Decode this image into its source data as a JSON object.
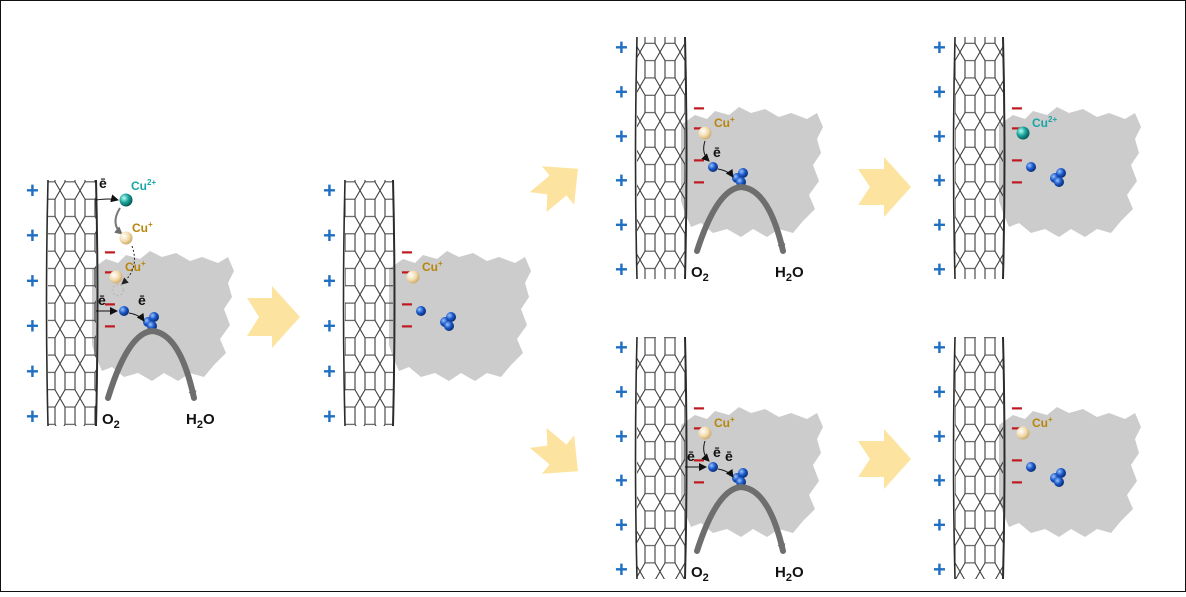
{
  "colors": {
    "tube": "#2b2b2b",
    "protein": "#cccccc",
    "plus": "#1f6fc2",
    "minus": "#c0181e",
    "cu1_ion": "#f0d9a8",
    "cu2_ion": "#1aa39a",
    "cu1_label": "#b8860b",
    "cu2_label": "#18a5a5",
    "copper_center": "#1b58c9",
    "step_arrow": "#fce3a0",
    "turnover_arrow": "#6e6e6e"
  },
  "labels": {
    "electron": "ē",
    "cu_plus_base": "Cu",
    "cu_plus_sup": "+",
    "cu_2plus_base": "Cu",
    "cu_2plus_sup": "2+",
    "o2_base": "O",
    "o2_sub": "2",
    "h2o_h": "H",
    "h2o_sub": "2",
    "h2o_o": "O",
    "plus_sign": "+",
    "minus_sign": "−"
  },
  "panels": [
    {
      "id": "panel-1",
      "cu_state": "Cu+",
      "reaction": true,
      "electron_from_tube": true,
      "cu2_exchange": true
    },
    {
      "id": "panel-2",
      "cu_state": "Cu+",
      "reaction": false,
      "electron_from_tube": false,
      "cu2_exchange": false
    },
    {
      "id": "panel-3-top",
      "cu_state": "Cu+",
      "reaction": true,
      "electron_from_tube": false,
      "cu2_exchange": false
    },
    {
      "id": "panel-4-top",
      "cu_state": "Cu2+",
      "reaction": false,
      "electron_from_tube": false,
      "cu2_exchange": false
    },
    {
      "id": "panel-3-bottom",
      "cu_state": "Cu+",
      "reaction": true,
      "electron_from_tube": true,
      "cu2_exchange": false
    },
    {
      "id": "panel-4-bottom",
      "cu_state": "Cu+",
      "reaction": false,
      "electron_from_tube": false,
      "cu2_exchange": false
    }
  ]
}
